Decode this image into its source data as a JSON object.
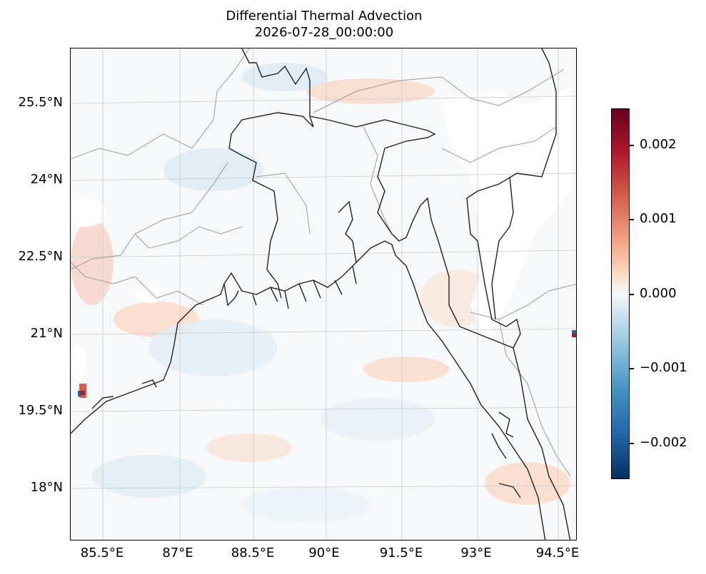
{
  "title": "Differential Thermal Advection",
  "subtitle": "2026-07-28_00:00:00",
  "map": {
    "projection": "lat-lon",
    "lon_range": [
      84.85,
      94.85
    ],
    "lat_range": [
      16.9,
      26.5
    ],
    "lat_ticks": [
      "25.5°N",
      "24°N",
      "22.5°N",
      "21°N",
      "19.5°N",
      "18°N"
    ],
    "lon_ticks": [
      "85.5°E",
      "87°E",
      "88.5°E",
      "90°E",
      "91.5°E",
      "93°E",
      "94.5°E"
    ],
    "gridlines": true,
    "features": [
      "coastlines",
      "country borders",
      "state borders"
    ],
    "field_colormap": "RdBu_r"
  },
  "colorbar": {
    "range": [
      -0.0025,
      0.0025
    ],
    "tick_labels": [
      "0.002",
      "0.001",
      "0.000",
      "−0.001",
      "−0.002"
    ],
    "placement": "right"
  },
  "colors": {
    "positive": "#b2182b",
    "negative": "#2166ac",
    "neutral": "#f7f7f7",
    "coastline": "#222222",
    "border": "#999999"
  }
}
